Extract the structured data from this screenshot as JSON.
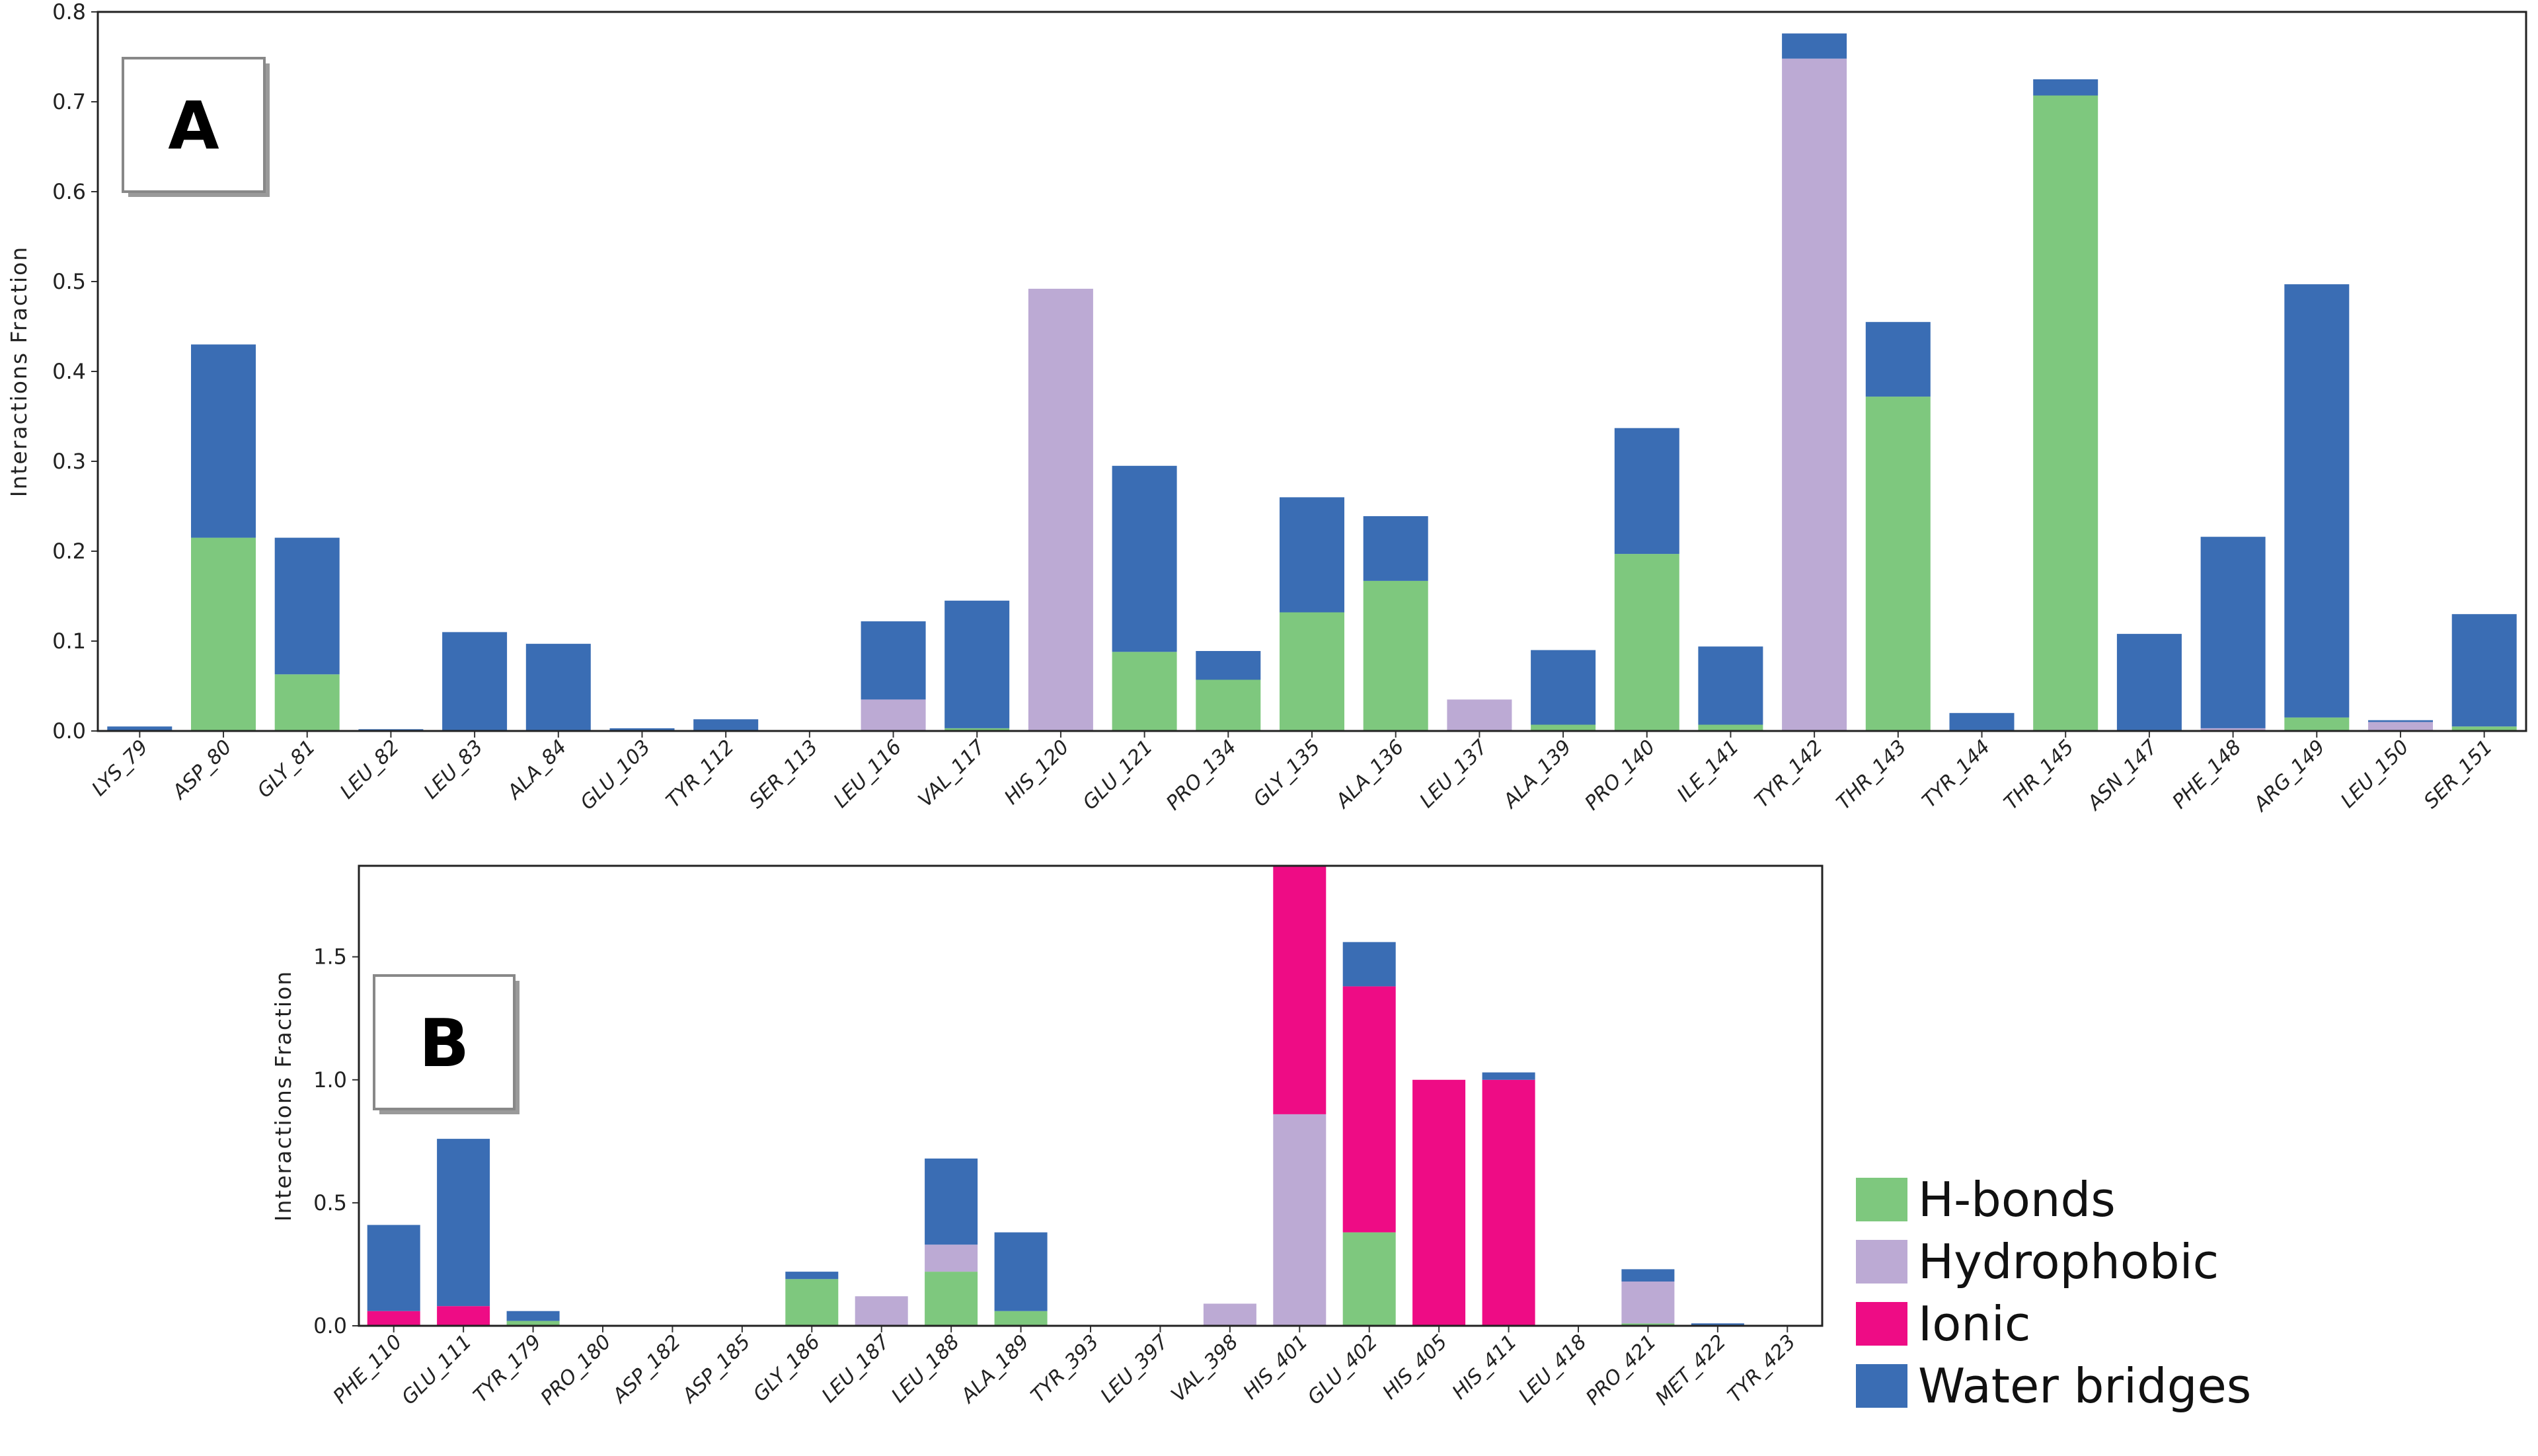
{
  "colors": {
    "hbonds": "#7ec87e",
    "hydrophobic": "#bcaad4",
    "ionic": "#ee0c85",
    "water": "#3a6db4"
  },
  "legend": {
    "items": [
      {
        "key": "hbonds",
        "label": "H-bonds"
      },
      {
        "key": "hydrophobic",
        "label": "Hydrophobic"
      },
      {
        "key": "ionic",
        "label": "Ionic"
      },
      {
        "key": "water",
        "label": "Water bridges"
      }
    ]
  },
  "chart_data": [
    {
      "type": "bar",
      "stacked": true,
      "panel_label": "A",
      "ylabel": "Interactions Fraction",
      "ylim": [
        0,
        0.8
      ],
      "yticks": [
        "0.0",
        "0.1",
        "0.2",
        "0.3",
        "0.4",
        "0.5",
        "0.6",
        "0.7",
        "0.8"
      ],
      "categories": [
        "LYS_79",
        "ASP_80",
        "GLY_81",
        "LEU_82",
        "LEU_83",
        "ALA_84",
        "GLU_103",
        "TYR_112",
        "SER_113",
        "LEU_116",
        "VAL_117",
        "HIS_120",
        "GLU_121",
        "PRO_134",
        "GLY_135",
        "ALA_136",
        "LEU_137",
        "ALA_139",
        "PRO_140",
        "ILE_141",
        "TYR_142",
        "THR_143",
        "TYR_144",
        "THR_145",
        "ASN_147",
        "PHE_148",
        "ARG_149",
        "LEU_150",
        "SER_151"
      ],
      "series": [
        {
          "name": "H-bonds",
          "key": "hbonds",
          "values": [
            0,
            0.215,
            0.063,
            0,
            0,
            0,
            0,
            0,
            0,
            0,
            0.003,
            0,
            0.088,
            0.057,
            0.132,
            0.167,
            0,
            0.007,
            0.197,
            0.007,
            0,
            0.372,
            0,
            0.707,
            0,
            0,
            0.015,
            0,
            0.005
          ]
        },
        {
          "name": "Hydrophobic",
          "key": "hydrophobic",
          "values": [
            0,
            0,
            0,
            0,
            0,
            0,
            0,
            0,
            0,
            0.035,
            0,
            0.492,
            0,
            0,
            0,
            0,
            0.035,
            0,
            0,
            0,
            0.748,
            0,
            0,
            0,
            0,
            0.003,
            0,
            0.01,
            0
          ]
        },
        {
          "name": "Ionic",
          "key": "ionic",
          "values": [
            0,
            0,
            0,
            0,
            0,
            0,
            0,
            0,
            0,
            0,
            0,
            0,
            0,
            0,
            0,
            0,
            0,
            0,
            0,
            0,
            0,
            0,
            0,
            0,
            0,
            0,
            0,
            0,
            0
          ]
        },
        {
          "name": "Water bridges",
          "key": "water",
          "values": [
            0.005,
            0.215,
            0.152,
            0.002,
            0.11,
            0.097,
            0.003,
            0.013,
            0,
            0.087,
            0.142,
            0,
            0.207,
            0.032,
            0.128,
            0.072,
            0,
            0.083,
            0.14,
            0.087,
            0.028,
            0.083,
            0.02,
            0.018,
            0.108,
            0.213,
            0.482,
            0.002,
            0.125
          ]
        }
      ]
    },
    {
      "type": "bar",
      "stacked": true,
      "panel_label": "B",
      "ylabel": "Interactions Fraction",
      "ylim": [
        0,
        1.87
      ],
      "yticks": [
        "0.0",
        "0.5",
        "1.0",
        "1.5"
      ],
      "categories": [
        "PHE_110",
        "GLU_111",
        "TYR_179",
        "PRO_180",
        "ASP_182",
        "ASP_185",
        "GLY_186",
        "LEU_187",
        "LEU_188",
        "ALA_189",
        "TYR_393",
        "LEU_397",
        "VAL_398",
        "HIS_401",
        "GLU_402",
        "HIS_405",
        "HIS_411",
        "LEU_418",
        "PRO_421",
        "MET_422",
        "TYR_423"
      ],
      "series": [
        {
          "name": "H-bonds",
          "key": "hbonds",
          "values": [
            0,
            0,
            0.02,
            0,
            0,
            0,
            0.19,
            0,
            0.22,
            0.06,
            0,
            0,
            0,
            0,
            0.38,
            0,
            0,
            0,
            0.01,
            0,
            0
          ]
        },
        {
          "name": "Hydrophobic",
          "key": "hydrophobic",
          "values": [
            0,
            0,
            0,
            0,
            0,
            0,
            0,
            0.12,
            0.11,
            0,
            0,
            0,
            0.09,
            0.86,
            0,
            0,
            0,
            0,
            0.17,
            0,
            0
          ]
        },
        {
          "name": "Ionic",
          "key": "ionic",
          "values": [
            0.06,
            0.08,
            0,
            0,
            0,
            0,
            0,
            0,
            0,
            0,
            0,
            0,
            0,
            1.01,
            1.0,
            1.0,
            1.0,
            0,
            0,
            0,
            0
          ]
        },
        {
          "name": "Water bridges",
          "key": "water",
          "values": [
            0.35,
            0.68,
            0.04,
            0,
            0,
            0,
            0.03,
            0,
            0.35,
            0.32,
            0,
            0,
            0,
            0,
            0.18,
            0,
            0.03,
            0,
            0.05,
            0.01,
            0
          ]
        }
      ]
    }
  ]
}
